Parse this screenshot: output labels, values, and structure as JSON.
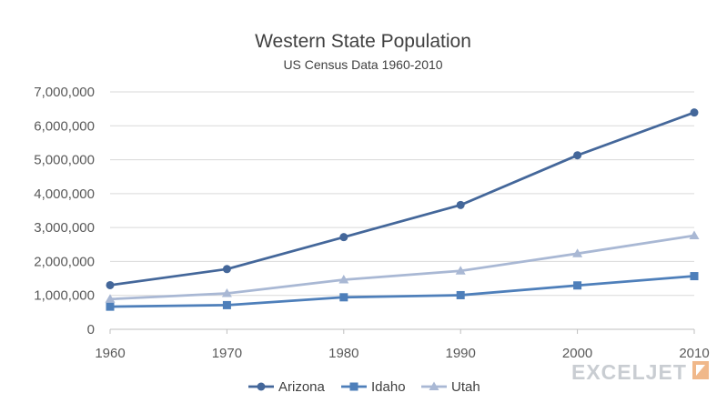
{
  "chart_data": {
    "type": "line",
    "title": "Western State Population",
    "subtitle": "US Census Data 1960-2010",
    "x": [
      1960,
      1970,
      1980,
      1990,
      2000,
      2010
    ],
    "x_tick_labels": [
      "1960",
      "1970",
      "1980",
      "1990",
      "2000",
      "2010"
    ],
    "ylim": [
      0,
      7000000
    ],
    "y_ticks": [
      0,
      1000000,
      2000000,
      3000000,
      4000000,
      5000000,
      6000000,
      7000000
    ],
    "y_tick_labels": [
      "0",
      "1,000,000",
      "2,000,000",
      "3,000,000",
      "4,000,000",
      "5,000,000",
      "6,000,000",
      "7,000,000"
    ],
    "grid": true,
    "legend_position": "bottom",
    "series": [
      {
        "name": "Arizona",
        "marker": "circle",
        "color": "#44679a",
        "values": [
          1302161,
          1775399,
          2718215,
          3665228,
          5130632,
          6392017
        ]
      },
      {
        "name": "Idaho",
        "marker": "square",
        "color": "#4e7fba",
        "values": [
          667191,
          713015,
          944038,
          1006749,
          1293953,
          1567582
        ]
      },
      {
        "name": "Utah",
        "marker": "triangle",
        "color": "#a9b8d4",
        "values": [
          890627,
          1059273,
          1461037,
          1722850,
          2233169,
          2763885
        ]
      }
    ]
  },
  "watermark": {
    "text": "EXCELJET",
    "color": "#c9cdd2",
    "accent_color": "#f0b88a"
  }
}
